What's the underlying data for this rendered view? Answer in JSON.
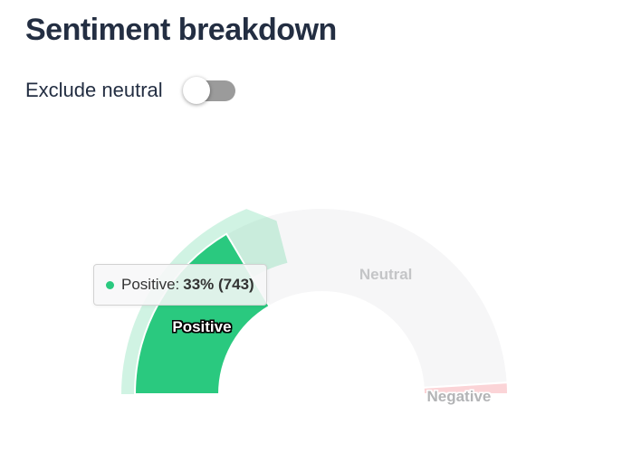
{
  "header": {
    "title": "Sentiment breakdown"
  },
  "controls": {
    "exclude_neutral": {
      "label": "Exclude neutral",
      "state": "off"
    }
  },
  "tooltip": {
    "marker_color": "#2ac97f",
    "label": "Positive:",
    "value": "33% (743)"
  },
  "chart_data": {
    "type": "pie",
    "variant": "half-donut",
    "start_angle_deg": 180,
    "end_angle_deg": 0,
    "legend_position": "none",
    "hovered_segment": "Positive",
    "segments": [
      {
        "name": "Positive",
        "percent": 33,
        "count": 743,
        "color": "#2ac97f",
        "label_color": "#ffffff",
        "outline": "dark"
      },
      {
        "name": "Neutral",
        "percent": 65,
        "color": "#f6f6f7",
        "label_color": "#c4c5c7",
        "outline": "none"
      },
      {
        "name": "Negative",
        "percent": 2,
        "color": "#fbd4d7",
        "label_color": "#b3b4b6",
        "outline": "light"
      }
    ],
    "halo_color": "rgba(42,201,127,0.22)"
  }
}
